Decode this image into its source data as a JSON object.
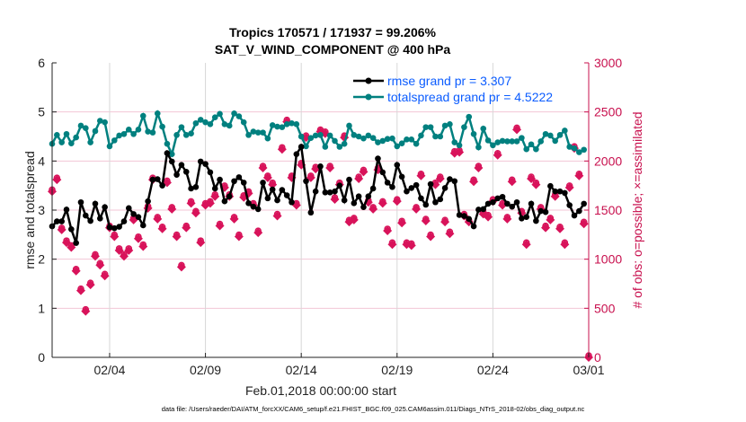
{
  "chart_data": {
    "type": "line",
    "title": "Tropics 170571 / 171937 = 99.206%",
    "subtitle": "SAT_V_WIND_COMPONENT @ 400 hPa",
    "xlabel": "Feb.01,2018 00:00:00 start",
    "ylabel": "rmse and totalspread",
    "ylabel_right": "# of obs: o=possible; ×=assimilated",
    "footer": "data file: /Users/raeder/DAI/ATM_forcXX/CAM6_setup/f.e21.FHIST_BGC.f09_025.CAM6assim.011/Diags_NTrS_2018-02/obs_diag_output.nc",
    "x_start": "2018-02-01 00:00",
    "x_interval_hours": 6,
    "xlim": [
      "2018-02-01",
      "2018-03-01"
    ],
    "x_ticks": [
      "02/04",
      "02/09",
      "02/14",
      "02/19",
      "02/24",
      "03/01"
    ],
    "ylim": [
      0,
      6
    ],
    "y_ticks": [
      "0",
      "1",
      "2",
      "3",
      "4",
      "5",
      "6"
    ],
    "ylim_right": [
      0,
      3000
    ],
    "y_ticks_right": [
      "0",
      "500",
      "1000",
      "1500",
      "2000",
      "2500",
      "3000"
    ],
    "grid": true,
    "legend_position": "top-right",
    "colors": {
      "rmse": "#000000",
      "spread": "#00807f",
      "obs": "#d8135a",
      "legend_text": "#0b5cff"
    },
    "series": [
      {
        "name": "rmse grand pr = 3.307",
        "axis": "left",
        "values": [
          2.67,
          2.77,
          2.77,
          3.01,
          2.61,
          2.33,
          3.16,
          2.89,
          2.78,
          3.13,
          2.83,
          3.06,
          2.65,
          2.63,
          2.66,
          2.77,
          3.04,
          2.92,
          2.86,
          2.69,
          3.18,
          3.62,
          3.63,
          3.5,
          4.16,
          3.99,
          3.72,
          3.92,
          3.78,
          3.44,
          3.47,
          3.99,
          3.94,
          3.77,
          3.44,
          3.62,
          3.18,
          3.28,
          3.59,
          3.67,
          3.56,
          3.14,
          3.07,
          3.02,
          3.56,
          3.24,
          3.42,
          3.2,
          3.41,
          3.3,
          3.16,
          4.14,
          4.29,
          3.59,
          2.95,
          3.38,
          3.89,
          3.36,
          3.36,
          3.38,
          3.5,
          3.2,
          3.62,
          3.14,
          3.28,
          3.06,
          3.28,
          3.44,
          4.05,
          3.77,
          3.56,
          3.47,
          3.92,
          3.68,
          3.38,
          3.45,
          3.51,
          3.24,
          3.11,
          3.53,
          3.16,
          3.22,
          3.45,
          3.63,
          3.59,
          2.9,
          2.88,
          2.82,
          2.67,
          3.01,
          3.02,
          3.13,
          3.16,
          3.24,
          3.27,
          3.13,
          3.07,
          3.16,
          2.83,
          2.86,
          3.13,
          2.78,
          2.98,
          2.96,
          3.49,
          3.38,
          3.38,
          3.35,
          3.1,
          2.89,
          2.98,
          3.13
        ]
      },
      {
        "name": "totalspread grand pr = 4.5222",
        "axis": "left",
        "values": [
          4.35,
          4.53,
          4.38,
          4.55,
          4.36,
          4.48,
          4.72,
          4.67,
          4.38,
          4.61,
          4.82,
          4.79,
          4.3,
          4.42,
          4.52,
          4.55,
          4.64,
          4.55,
          4.64,
          4.92,
          4.6,
          4.58,
          4.97,
          4.7,
          4.35,
          4.14,
          4.53,
          4.69,
          4.53,
          4.56,
          4.77,
          4.84,
          4.79,
          4.75,
          4.89,
          4.96,
          4.75,
          4.72,
          4.97,
          4.91,
          4.79,
          4.53,
          4.6,
          4.58,
          4.58,
          4.46,
          4.73,
          4.7,
          4.69,
          4.75,
          4.77,
          4.75,
          4.5,
          4.3,
          4.47,
          4.52,
          4.53,
          4.29,
          4.52,
          4.41,
          4.29,
          4.35,
          4.72,
          4.53,
          4.5,
          4.46,
          4.52,
          4.47,
          4.38,
          4.41,
          4.45,
          4.46,
          4.3,
          4.36,
          4.44,
          4.44,
          4.35,
          4.52,
          4.69,
          4.69,
          4.5,
          4.5,
          4.72,
          4.75,
          4.38,
          4.32,
          4.69,
          4.9,
          4.55,
          4.28,
          4.66,
          4.42,
          4.32,
          4.38,
          4.41,
          4.4,
          4.4,
          4.4,
          4.47,
          4.24,
          4.34,
          4.24,
          4.4,
          4.55,
          4.52,
          4.41,
          4.53,
          4.62,
          4.29,
          4.26,
          4.18,
          4.23
        ]
      },
      {
        "name": "obs possible / assimilated",
        "axis": "right",
        "values": [
          1690,
          1810,
          1300,
          1170,
          1120,
          880,
          680,
          470,
          740,
          1030,
          940,
          830,
          1320,
          1230,
          1090,
          1030,
          1090,
          1400,
          1210,
          1130,
          1520,
          1810,
          1410,
          1310,
          1780,
          1510,
          1230,
          920,
          1320,
          1570,
          1470,
          1170,
          1550,
          1570,
          1640,
          1340,
          1730,
          1640,
          1410,
          1230,
          1630,
          1670,
          1550,
          1270,
          1930,
          1830,
          1760,
          1440,
          2120,
          2400,
          1830,
          1550,
          1960,
          2240,
          1830,
          1920,
          2300,
          2280,
          1930,
          1610,
          1760,
          2240,
          1380,
          1400,
          1820,
          1890,
          1580,
          1510,
          1910,
          1570,
          1290,
          1150,
          1590,
          1370,
          1150,
          1140,
          1510,
          1850,
          1390,
          1230,
          1760,
          1820,
          1380,
          1260,
          2080,
          2090,
          1440,
          1380,
          1790,
          1930,
          1460,
          1430,
          1590,
          2060,
          1550,
          1410,
          1790,
          2320,
          1470,
          1150,
          1820,
          1760,
          1510,
          1320,
          1400,
          1640,
          1310,
          1150,
          1730,
          2130,
          1850,
          1360,
          0
        ]
      }
    ],
    "legend": [
      "rmse grand pr = 3.307",
      "totalspread grand pr = 4.5222"
    ]
  }
}
